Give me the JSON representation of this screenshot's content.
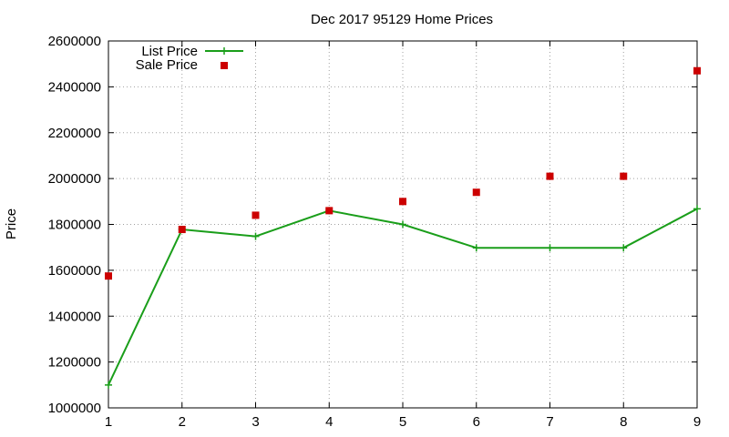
{
  "chart_data": {
    "type": "line",
    "title": "Dec 2017 95129 Home Prices",
    "xlabel": "",
    "ylabel": "Price",
    "x": [
      1,
      2,
      3,
      4,
      5,
      6,
      7,
      8,
      9
    ],
    "xlim": [
      1,
      9
    ],
    "ylim": [
      1000000,
      2600000
    ],
    "xticks": [
      1,
      2,
      3,
      4,
      5,
      6,
      7,
      8,
      9
    ],
    "yticks": [
      1000000,
      1200000,
      1400000,
      1600000,
      1800000,
      2000000,
      2200000,
      2400000,
      2600000
    ],
    "grid": true,
    "legend_position": "top-left",
    "series": [
      {
        "name": "List Price",
        "style": "line-with-plus-markers",
        "color": "#1a9e1a",
        "values": [
          1100000,
          1778000,
          1748000,
          1860000,
          1800000,
          1698000,
          1698000,
          1698000,
          1868000
        ]
      },
      {
        "name": "Sale Price",
        "style": "square-markers",
        "color": "#cc0000",
        "values": [
          1575000,
          1778000,
          1840000,
          1860000,
          1900000,
          1940000,
          2010000,
          2010000,
          2470000
        ]
      }
    ]
  }
}
